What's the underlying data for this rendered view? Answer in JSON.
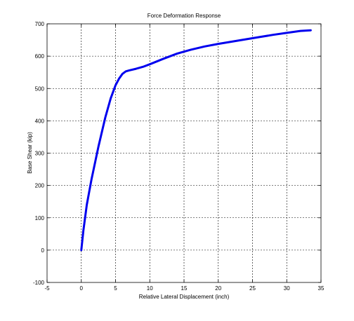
{
  "chart_data": {
    "type": "line",
    "title": "Force Deformation Response",
    "xlabel": "Relative Lateral Displacement (inch)",
    "ylabel": "Base Shear (kip)",
    "xlim": [
      -5,
      35
    ],
    "ylim": [
      -100,
      700
    ],
    "xticks": [
      -5,
      0,
      5,
      10,
      15,
      20,
      25,
      30,
      35
    ],
    "yticks": [
      -100,
      0,
      100,
      200,
      300,
      400,
      500,
      600,
      700
    ],
    "grid": true,
    "legend": "none",
    "series": [
      {
        "color": "#0000ee",
        "x": [
          0,
          0.3,
          0.8,
          1.5,
          2.5,
          3.5,
          4.3,
          5.0,
          5.5,
          6.0,
          6.5,
          7.0,
          8.0,
          9.0,
          10.0,
          12.0,
          14.0,
          16.0,
          18.0,
          20.0,
          22.0,
          24.0,
          26.0,
          28.0,
          30.0,
          32.0,
          33.5
        ],
        "y": [
          0,
          60,
          140,
          220,
          320,
          410,
          470,
          510,
          530,
          545,
          553,
          556,
          561,
          567,
          575,
          592,
          608,
          620,
          630,
          638,
          645,
          652,
          659,
          666,
          672,
          678,
          680
        ]
      }
    ]
  }
}
